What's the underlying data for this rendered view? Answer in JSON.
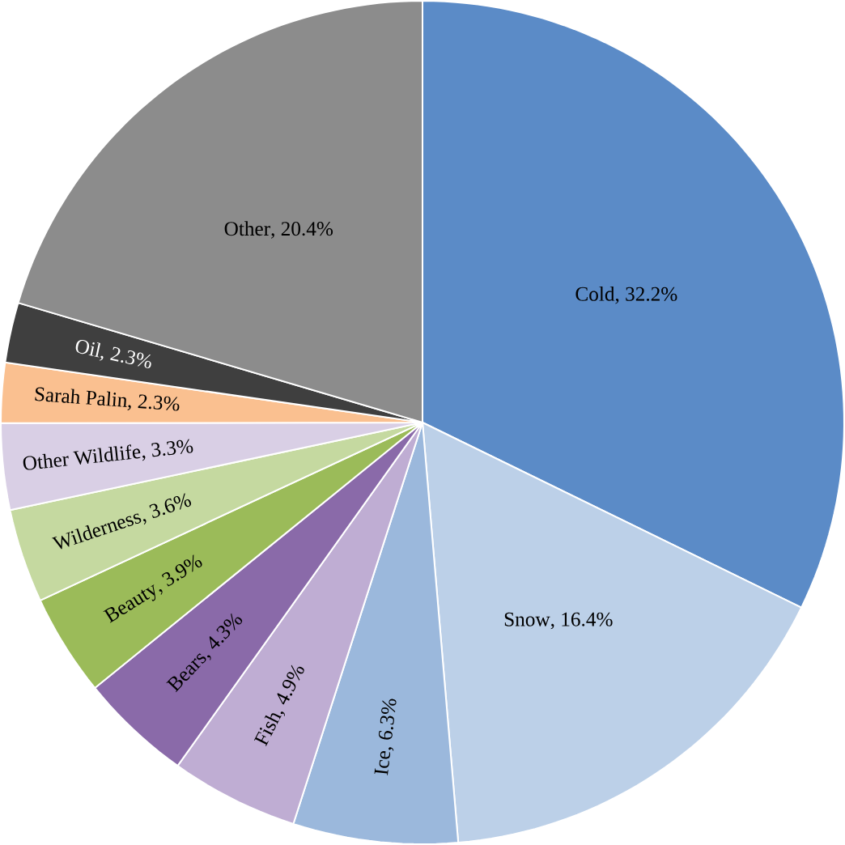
{
  "chart_data": {
    "type": "pie",
    "categories": [
      "Cold",
      "Snow",
      "Ice",
      "Fish",
      "Bears",
      "Beauty",
      "Wilderness",
      "Other Wildlife",
      "Sarah Palin",
      "Oil",
      "Other"
    ],
    "values": [
      32.2,
      16.4,
      6.3,
      4.9,
      4.3,
      3.9,
      3.6,
      3.3,
      2.3,
      2.3,
      20.4
    ],
    "value_labels": [
      ", 32.2%",
      ", 16.4%",
      ", 6.3%",
      ", 4.9%",
      ", 4.3%",
      ", 3.9%",
      ", 3.6%",
      ", 3.3%",
      ", 2.3%",
      ", 2.3%",
      ", 20.4%"
    ],
    "colors": [
      "#5b8bc7",
      "#bcd0e8",
      "#9bb8dc",
      "#bfadd3",
      "#8a6aa9",
      "#9bbb59",
      "#c5d9a0",
      "#d9cfe5",
      "#fac090",
      "#3f3f3f",
      "#8c8c8c"
    ]
  }
}
